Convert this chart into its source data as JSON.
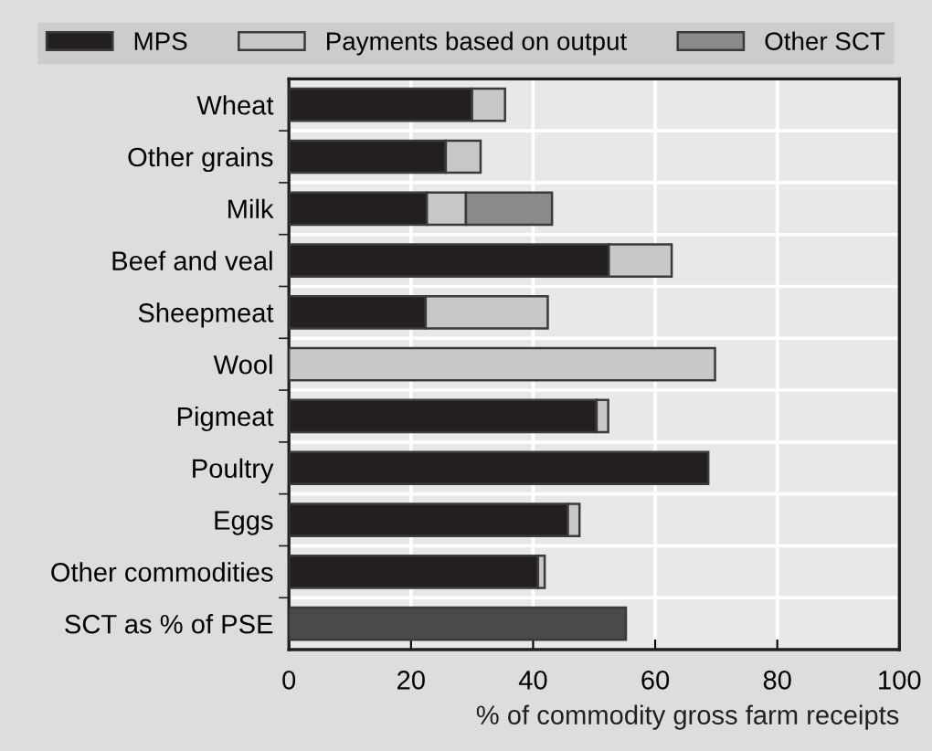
{
  "chart_data": {
    "type": "bar",
    "orientation": "horizontal",
    "stacked": true,
    "categories": [
      "Wheat",
      "Other grains",
      "Milk",
      "Beef and veal",
      "Sheepmeat",
      "Wool",
      "Pigmeat",
      "Poultry",
      "Eggs",
      "Other commodities",
      "SCT as % of PSE"
    ],
    "series": [
      {
        "name": "MPS",
        "color": "#231f20",
        "values": [
          30,
          25.7,
          22.6,
          52.4,
          22.4,
          0,
          50.4,
          68.7,
          45.7,
          40.8,
          0
        ]
      },
      {
        "name": "Payments based on output",
        "color": "#c8c8c9",
        "values": [
          5.4,
          5.7,
          6.4,
          10.3,
          20,
          69.8,
          1.9,
          0,
          1.9,
          1.1,
          0
        ]
      },
      {
        "name": "Other SCT",
        "color": "#8a8a8c",
        "values": [
          0,
          0,
          14.1,
          0,
          0,
          0,
          0,
          0,
          0,
          0,
          0
        ]
      },
      {
        "color": "#4a4a4b",
        "values": [
          0,
          0,
          0,
          0,
          0,
          0,
          0,
          0,
          0,
          0,
          55.2
        ]
      }
    ],
    "xlabel": "% of commodity gross farm receipts",
    "xlim": [
      0,
      100
    ],
    "xticks": [
      0,
      20,
      40,
      60,
      80,
      100
    ],
    "grid": true,
    "legend": "top"
  }
}
